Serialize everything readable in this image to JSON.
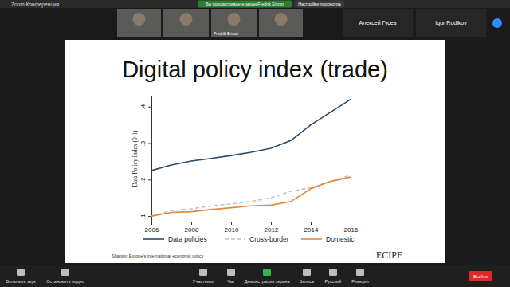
{
  "chart_data": {
    "type": "line",
    "title": "Digital policy index (trade)",
    "y_label": "Data Policy Index (0-1)",
    "x": [
      2006,
      2007,
      2008,
      2009,
      2010,
      2011,
      2012,
      2013,
      2014,
      2015,
      2016
    ],
    "series": [
      {
        "name": "Data policies",
        "color": "#2b4a66",
        "line_style": "solid",
        "values": [
          0.225,
          0.24,
          0.251,
          0.258,
          0.266,
          0.275,
          0.286,
          0.307,
          0.35,
          0.385,
          0.42
        ]
      },
      {
        "name": "Cross-border",
        "color": "#c4c4c4",
        "line_style": "dashed",
        "values": [
          0.1,
          0.115,
          0.12,
          0.128,
          0.133,
          0.14,
          0.15,
          0.168,
          0.178,
          0.195,
          0.212
        ]
      },
      {
        "name": "Domestic",
        "color": "#e08a3c",
        "line_style": "solid",
        "values": [
          0.1,
          0.11,
          0.112,
          0.118,
          0.123,
          0.128,
          0.13,
          0.14,
          0.175,
          0.195,
          0.207
        ]
      }
    ],
    "xlim": [
      2006,
      2016
    ],
    "xticks": [
      2006,
      2008,
      2010,
      2012,
      2014,
      2016
    ],
    "ylim": [
      0.085,
      0.43
    ],
    "yticks": [
      {
        "value": 0.1,
        "label": ".1"
      },
      {
        "value": 0.2,
        "label": ".2"
      },
      {
        "value": 0.3,
        "label": ".3"
      },
      {
        "value": 0.4,
        "label": ".4"
      }
    ],
    "grid": false,
    "legend": "bottom"
  },
  "app": {
    "title": "Zoom Конференция",
    "banner": "Вы просматриваете экран Fredrik Erixon",
    "view_options": "Настройки просмотра",
    "participants": [
      "Fredrik Erixon",
      "Алексей Гусев",
      "Igor Rodikov"
    ],
    "toolbar": [
      "Включить звук",
      "Остановить видео",
      "Участники",
      "Чат",
      "Демонстрация экрана",
      "Запись",
      "Русский",
      "Реакции"
    ],
    "leave": "Выйти"
  },
  "slide": {
    "footer": "Shaping Europe's international economic policy",
    "logo": "ECIPE"
  }
}
